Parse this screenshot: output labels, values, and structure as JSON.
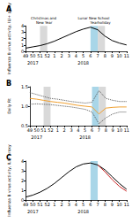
{
  "chart_data": [
    {
      "type": "line",
      "title": "A",
      "categories": [
        "49",
        "50",
        "51",
        "52",
        "1",
        "2",
        "3",
        "4",
        "5",
        "6",
        "7",
        "8",
        "9",
        "10",
        "11"
      ],
      "year_labels": [
        {
          "text": "2017",
          "category": "50"
        },
        {
          "text": "2018",
          "category": "5"
        }
      ],
      "shading": [
        {
          "from": "51",
          "to": "52",
          "color": "#d9d9d9",
          "label": "Christmas and New Year"
        },
        {
          "from": "6",
          "to": "7",
          "color": "#a9d6e8",
          "label": "Lunar New Year"
        },
        {
          "from": "7",
          "to": "8",
          "color": "#d9d9d9",
          "label": "School holiday"
        }
      ],
      "y_label": "Influenza B virus activity, ILI+ proxy",
      "ylim": [
        0,
        4
      ],
      "yticks": [
        0,
        1,
        2,
        3,
        4
      ],
      "grid": false,
      "series": [
        {
          "color": "#000000",
          "line_style": "solid",
          "values": [
            0.5,
            0.7,
            0.9,
            1.2,
            1.6,
            2.1,
            2.6,
            3.1,
            3.5,
            3.8,
            3.4,
            2.4,
            1.7,
            1.3,
            1.0
          ]
        }
      ]
    },
    {
      "type": "line",
      "title": "B",
      "categories": [
        "49",
        "50",
        "51",
        "52",
        "1",
        "2",
        "3",
        "4",
        "5",
        "6",
        "7",
        "8",
        "9",
        "10",
        "11"
      ],
      "year_labels": [
        {
          "text": "2017",
          "category": "50"
        },
        {
          "text": "2018",
          "category": "5"
        }
      ],
      "shading": [
        {
          "from": "51",
          "to": "52",
          "color": "#d9d9d9"
        },
        {
          "from": "6",
          "to": "7",
          "color": "#a9d6e8"
        },
        {
          "from": "7",
          "to": "8",
          "color": "#d9d9d9"
        }
      ],
      "y_label": "Daily Rt",
      "ylim": [
        0.5,
        1.5
      ],
      "yticks": [
        {
          "value": 0.5,
          "label": "0.5"
        },
        {
          "value": 1,
          "label": "1.0"
        },
        {
          "value": 1.5,
          "label": "1.5"
        }
      ],
      "grid": false,
      "series": [
        {
          "color": "#555555",
          "line_style": "dotted",
          "values": [
            1.35,
            1.3,
            1.25,
            1.2,
            1.18,
            1.15,
            1.12,
            1.1,
            1.08,
            1.1,
            1.4,
            1.2,
            1.15,
            1.12,
            1.12
          ]
        },
        {
          "color": "#555555",
          "line_style": "dotted",
          "values": [
            1.05,
            1.06,
            1.05,
            1.04,
            1.02,
            1.0,
            0.98,
            0.95,
            0.92,
            0.85,
            0.55,
            0.7,
            0.8,
            0.85,
            0.85
          ]
        },
        {
          "color": "#f0a030",
          "line_style": "solid",
          "values": [
            1.2,
            1.18,
            1.15,
            1.12,
            1.1,
            1.08,
            1.05,
            1.02,
            1.0,
            0.98,
            0.8,
            0.95,
            0.97,
            0.98,
            0.98
          ]
        }
      ]
    },
    {
      "type": "line",
      "title": "C",
      "categories": [
        "49",
        "50",
        "51",
        "52",
        "1",
        "2",
        "3",
        "4",
        "5",
        "6",
        "7",
        "8",
        "9",
        "10",
        "11"
      ],
      "year_labels": [
        {
          "text": "2017",
          "category": "50"
        },
        {
          "text": "2018",
          "category": "5"
        }
      ],
      "shading": [
        {
          "from": "6",
          "to": "7",
          "color": "#a9d6e8"
        }
      ],
      "y_label": "Influenza B virus activity, ILI+ proxy",
      "ylim": [
        0,
        4
      ],
      "yticks": [
        0,
        1,
        2,
        3,
        4
      ],
      "grid": false,
      "series": [
        {
          "color": "#000000",
          "line_style": "solid",
          "values": [
            0.3,
            0.5,
            0.8,
            1.2,
            1.7,
            2.3,
            2.9,
            3.4,
            3.7,
            3.8,
            3.6,
            3.1,
            2.4,
            1.7,
            1.1
          ]
        },
        {
          "color": "#cc2222",
          "line_style": "solid",
          "values": [
            null,
            null,
            null,
            null,
            null,
            null,
            null,
            null,
            null,
            null,
            3.6,
            2.9,
            2.1,
            1.4,
            0.9
          ]
        }
      ]
    }
  ]
}
